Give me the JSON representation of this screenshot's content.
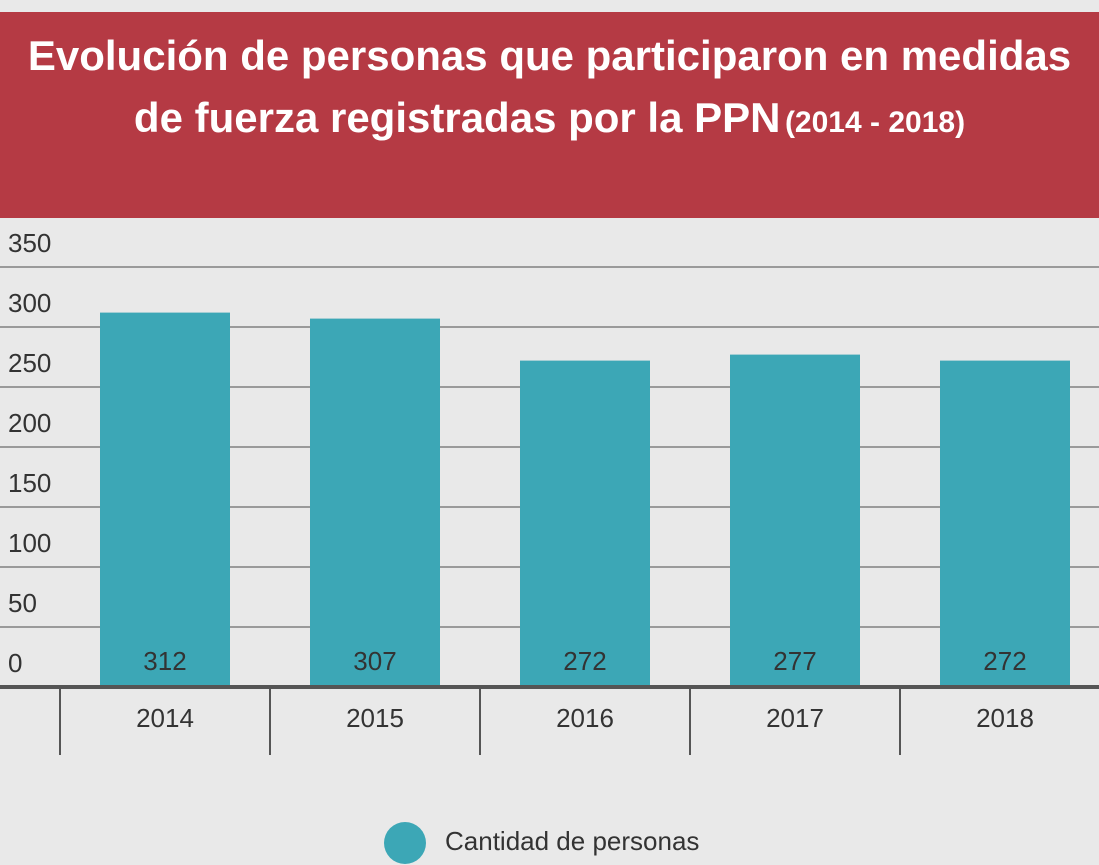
{
  "chart_data": {
    "type": "bar",
    "title": "Evolución de personas que participaron en medidas de fuerza registradas por la PPN",
    "subtitle": "(2014 - 2018)",
    "categories": [
      "2014",
      "2015",
      "2016",
      "2017",
      "2018"
    ],
    "series": [
      {
        "name": "Cantidad de personas",
        "color": "#3ca7b6",
        "values": [
          312,
          307,
          272,
          277,
          272
        ]
      }
    ],
    "ylim": [
      0,
      350
    ],
    "yticks": [
      0,
      50,
      100,
      150,
      200,
      250,
      300,
      350
    ],
    "grid": true,
    "legend": "bottom"
  }
}
